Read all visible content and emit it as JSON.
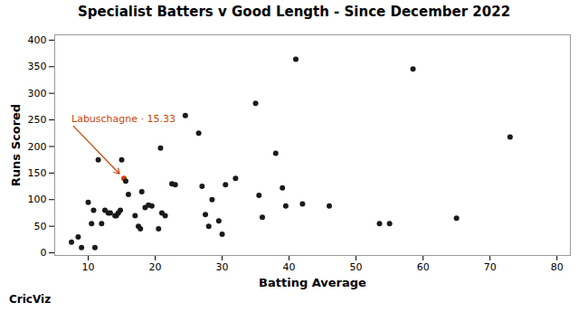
{
  "chart_data": {
    "type": "scatter",
    "title": "Specialist Batters v Good Length - Since December 2022",
    "xlabel": "Batting Average",
    "ylabel": "Runs Scored",
    "caption": "CricViz",
    "xlim": [
      5,
      82
    ],
    "ylim": [
      -5,
      410
    ],
    "xticks": [
      10,
      20,
      30,
      40,
      50,
      60,
      70,
      80
    ],
    "yticks": [
      0,
      50,
      100,
      150,
      200,
      250,
      300,
      350,
      400
    ],
    "grid": false,
    "x": [
      7.5,
      8.5,
      9.0,
      10.0,
      10.5,
      10.8,
      11.0,
      11.5,
      12.0,
      12.5,
      13.0,
      13.3,
      14.0,
      14.2,
      14.5,
      14.8,
      15.0,
      15.33,
      15.6,
      16.0,
      17.0,
      17.5,
      17.8,
      18.0,
      18.5,
      19.0,
      19.5,
      20.5,
      20.8,
      21.0,
      21.5,
      22.5,
      23.0,
      24.5,
      26.5,
      27.0,
      27.5,
      28.0,
      28.5,
      29.5,
      30.0,
      30.5,
      32.0,
      35.0,
      35.5,
      36.0,
      38.0,
      39.0,
      39.5,
      41.0,
      42.0,
      46.0,
      53.5,
      55.0,
      58.5,
      65.0,
      73.0
    ],
    "values": [
      20,
      30,
      10,
      95,
      55,
      80,
      10,
      175,
      55,
      80,
      75,
      75,
      70,
      70,
      75,
      80,
      175,
      140,
      135,
      110,
      70,
      50,
      45,
      115,
      85,
      90,
      88,
      45,
      197,
      75,
      70,
      130,
      128,
      258,
      225,
      125,
      72,
      50,
      100,
      60,
      35,
      128,
      140,
      281,
      108,
      67,
      187,
      122,
      88,
      364,
      92,
      88,
      55,
      55,
      346,
      65,
      218
    ],
    "colors": [
      "#1a1a1a",
      "#1a1a1a",
      "#1a1a1a",
      "#1a1a1a",
      "#1a1a1a",
      "#1a1a1a",
      "#1a1a1a",
      "#1a1a1a",
      "#1a1a1a",
      "#1a1a1a",
      "#1a1a1a",
      "#1a1a1a",
      "#1a1a1a",
      "#1a1a1a",
      "#1a1a1a",
      "#1a1a1a",
      "#1a1a1a",
      "#cc4400",
      "#1a1a1a",
      "#1a1a1a",
      "#1a1a1a",
      "#1a1a1a",
      "#1a1a1a",
      "#1a1a1a",
      "#1a1a1a",
      "#1a1a1a",
      "#1a1a1a",
      "#1a1a1a",
      "#1a1a1a",
      "#1a1a1a",
      "#1a1a1a",
      "#1a1a1a",
      "#1a1a1a",
      "#1a1a1a",
      "#1a1a1a",
      "#1a1a1a",
      "#1a1a1a",
      "#1a1a1a",
      "#1a1a1a",
      "#1a1a1a",
      "#1a1a1a",
      "#1a1a1a",
      "#1a1a1a",
      "#1a1a1a",
      "#1a1a1a",
      "#1a1a1a",
      "#1a1a1a",
      "#1a1a1a",
      "#1a1a1a",
      "#1a1a1a",
      "#1a1a1a",
      "#1a1a1a",
      "#1a1a1a",
      "#1a1a1a",
      "#1a1a1a",
      "#1a1a1a",
      "#1a1a1a"
    ],
    "annotations": [
      {
        "text": "Labuschagne · 15.33",
        "x": 15.33,
        "y": 140,
        "text_x": 7.5,
        "text_y": 242,
        "color": "#cc4400"
      }
    ]
  }
}
